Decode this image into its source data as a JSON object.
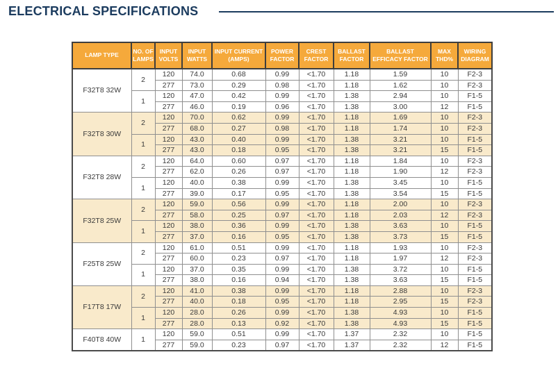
{
  "page": {
    "title": "ELECTRICAL SPECIFICATIONS"
  },
  "colors": {
    "header_bg": "#F5A93B",
    "shaded_row_bg": "#F9EACB",
    "accent_navy": "#1B3B5E",
    "border_dark": "#4A4A4A"
  },
  "table": {
    "columns": [
      "LAMP TYPE",
      "NO. OF LAMPS",
      "INPUT VOLTS",
      "INPUT WATTS",
      "INPUT CURRENT (AMPS)",
      "POWER FACTOR",
      "CREST FACTOR",
      "BALLAST FACTOR",
      "BALLAST EFFICACY FACTOR",
      "MAX THD%",
      "WIRING DIAGRAM"
    ],
    "groups": [
      {
        "lamp_type": "F32T8 32W",
        "sections": [
          {
            "lamps": "2",
            "rows": [
              [
                "120",
                "74.0",
                "0.68",
                "0.99",
                "<1.70",
                "1.18",
                "1.59",
                "10",
                "F2-3"
              ],
              [
                "277",
                "73.0",
                "0.29",
                "0.98",
                "<1.70",
                "1.18",
                "1.62",
                "10",
                "F2-3"
              ]
            ]
          },
          {
            "lamps": "1",
            "rows": [
              [
                "120",
                "47.0",
                "0.42",
                "0.99",
                "<1.70",
                "1.38",
                "2.94",
                "10",
                "F1-5"
              ],
              [
                "277",
                "46.0",
                "0.19",
                "0.96",
                "<1.70",
                "1.38",
                "3.00",
                "12",
                "F1-5"
              ]
            ]
          }
        ]
      },
      {
        "lamp_type": "F32T8 30W",
        "sections": [
          {
            "lamps": "2",
            "rows": [
              [
                "120",
                "70.0",
                "0.62",
                "0.99",
                "<1.70",
                "1.18",
                "1.69",
                "10",
                "F2-3"
              ],
              [
                "277",
                "68.0",
                "0.27",
                "0.98",
                "<1.70",
                "1.18",
                "1.74",
                "10",
                "F2-3"
              ]
            ]
          },
          {
            "lamps": "1",
            "rows": [
              [
                "120",
                "43.0",
                "0.40",
                "0.99",
                "<1.70",
                "1.38",
                "3.21",
                "10",
                "F1-5"
              ],
              [
                "277",
                "43.0",
                "0.18",
                "0.95",
                "<1.70",
                "1.38",
                "3.21",
                "15",
                "F1-5"
              ]
            ]
          }
        ]
      },
      {
        "lamp_type": "F32T8 28W",
        "sections": [
          {
            "lamps": "2",
            "rows": [
              [
                "120",
                "64.0",
                "0.60",
                "0.97",
                "<1.70",
                "1.18",
                "1.84",
                "10",
                "F2-3"
              ],
              [
                "277",
                "62.0",
                "0.26",
                "0.97",
                "<1.70",
                "1.18",
                "1.90",
                "12",
                "F2-3"
              ]
            ]
          },
          {
            "lamps": "1",
            "rows": [
              [
                "120",
                "40.0",
                "0.38",
                "0.99",
                "<1.70",
                "1.38",
                "3.45",
                "10",
                "F1-5"
              ],
              [
                "277",
                "39.0",
                "0.17",
                "0.95",
                "<1.70",
                "1.38",
                "3.54",
                "15",
                "F1-5"
              ]
            ]
          }
        ]
      },
      {
        "lamp_type": "F32T8 25W",
        "sections": [
          {
            "lamps": "2",
            "rows": [
              [
                "120",
                "59.0",
                "0.56",
                "0.99",
                "<1.70",
                "1.18",
                "2.00",
                "10",
                "F2-3"
              ],
              [
                "277",
                "58.0",
                "0.25",
                "0.97",
                "<1.70",
                "1.18",
                "2.03",
                "12",
                "F2-3"
              ]
            ]
          },
          {
            "lamps": "1",
            "rows": [
              [
                "120",
                "38.0",
                "0.36",
                "0.99",
                "<1.70",
                "1.38",
                "3.63",
                "10",
                "F1-5"
              ],
              [
                "277",
                "37.0",
                "0.16",
                "0.95",
                "<1.70",
                "1.38",
                "3.73",
                "15",
                "F1-5"
              ]
            ]
          }
        ]
      },
      {
        "lamp_type": "F25T8 25W",
        "sections": [
          {
            "lamps": "2",
            "rows": [
              [
                "120",
                "61.0",
                "0.51",
                "0.99",
                "<1.70",
                "1.18",
                "1.93",
                "10",
                "F2-3"
              ],
              [
                "277",
                "60.0",
                "0.23",
                "0.97",
                "<1.70",
                "1.18",
                "1.97",
                "12",
                "F2-3"
              ]
            ]
          },
          {
            "lamps": "1",
            "rows": [
              [
                "120",
                "37.0",
                "0.35",
                "0.99",
                "<1.70",
                "1.38",
                "3.72",
                "10",
                "F1-5"
              ],
              [
                "277",
                "38.0",
                "0.16",
                "0.94",
                "<1.70",
                "1.38",
                "3.63",
                "15",
                "F1-5"
              ]
            ]
          }
        ]
      },
      {
        "lamp_type": "F17T8 17W",
        "sections": [
          {
            "lamps": "2",
            "rows": [
              [
                "120",
                "41.0",
                "0.38",
                "0.99",
                "<1.70",
                "1.18",
                "2.88",
                "10",
                "F2-3"
              ],
              [
                "277",
                "40.0",
                "0.18",
                "0.95",
                "<1.70",
                "1.18",
                "2.95",
                "15",
                "F2-3"
              ]
            ]
          },
          {
            "lamps": "1",
            "rows": [
              [
                "120",
                "28.0",
                "0.26",
                "0.99",
                "<1.70",
                "1.38",
                "4.93",
                "10",
                "F1-5"
              ],
              [
                "277",
                "28.0",
                "0.13",
                "0.92",
                "<1.70",
                "1.38",
                "4.93",
                "15",
                "F1-5"
              ]
            ]
          }
        ]
      },
      {
        "lamp_type": "F40T8 40W",
        "sections": [
          {
            "lamps": "1",
            "rows": [
              [
                "120",
                "59.0",
                "0.51",
                "0.99",
                "<1.70",
                "1.37",
                "2.32",
                "10",
                "F1-5"
              ],
              [
                "277",
                "59.0",
                "0.23",
                "0.97",
                "<1.70",
                "1.37",
                "2.32",
                "12",
                "F1-5"
              ]
            ]
          }
        ]
      }
    ]
  }
}
